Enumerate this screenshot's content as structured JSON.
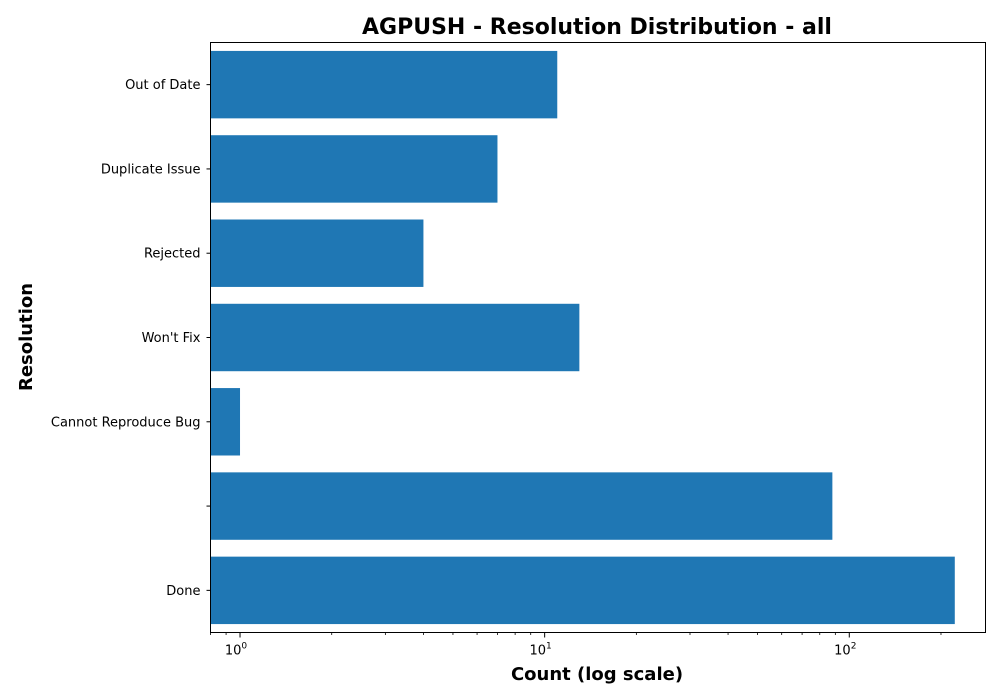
{
  "chart_data": {
    "type": "bar",
    "orientation": "horizontal",
    "title": "AGPUSH - Resolution Distribution - all",
    "xlabel": "Count (log scale)",
    "ylabel": "Resolution",
    "xscale": "log",
    "xlim": [
      0.8,
      280
    ],
    "categories": [
      "Out of Date",
      "Duplicate Issue",
      "Rejected",
      "Won't Fix",
      "Cannot Reproduce Bug",
      "",
      "Done"
    ],
    "values": [
      11,
      7,
      4,
      13,
      1,
      88,
      222
    ],
    "x_ticks": [
      {
        "base": "10",
        "exp": "0",
        "value": 1
      },
      {
        "base": "10",
        "exp": "1",
        "value": 10
      },
      {
        "base": "10",
        "exp": "2",
        "value": 100
      }
    ],
    "bar_color": "#1f77b4",
    "grid": false,
    "legend": "none"
  }
}
